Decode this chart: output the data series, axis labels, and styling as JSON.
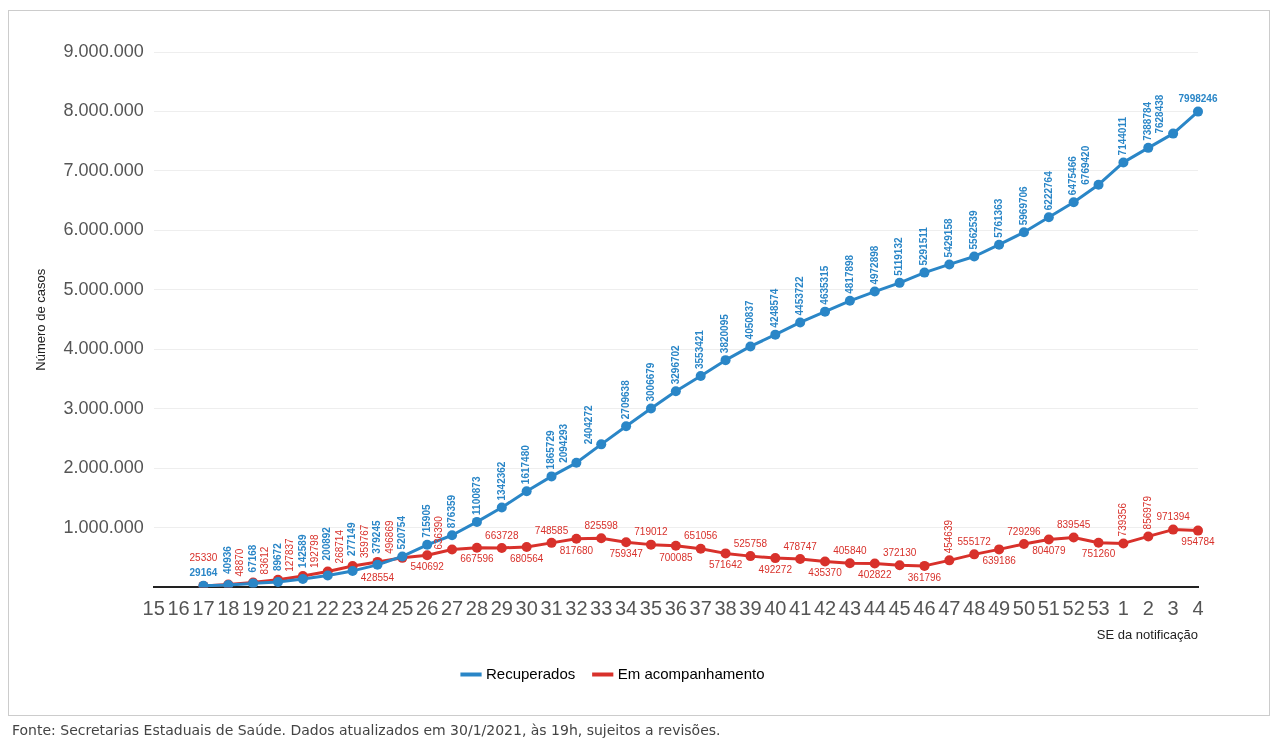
{
  "chart_data": {
    "type": "line",
    "ylabel": "Número de casos",
    "xlabel": "SE da notificação",
    "categories": [
      "15",
      "16",
      "17",
      "18",
      "19",
      "20",
      "21",
      "22",
      "23",
      "24",
      "25",
      "26",
      "27",
      "28",
      "29",
      "30",
      "31",
      "32",
      "33",
      "34",
      "35",
      "36",
      "37",
      "38",
      "39",
      "40",
      "41",
      "42",
      "43",
      "44",
      "45",
      "46",
      "47",
      "48",
      "49",
      "50",
      "51",
      "52",
      "53",
      "1",
      "2",
      "3",
      "4"
    ],
    "series": [
      {
        "name": "Recuperados",
        "color": "#2a86c7",
        "values": [
          null,
          null,
          29164,
          40936,
          67168,
          89672,
          142589,
          200892,
          277149,
          379245,
          520754,
          715905,
          876359,
          1100873,
          1342362,
          1617480,
          1865729,
          2094293,
          2404272,
          2709638,
          3006679,
          3296702,
          3553421,
          3820095,
          4050837,
          4248574,
          4453722,
          4635315,
          4817898,
          4972898,
          5119132,
          5291511,
          5429158,
          5562539,
          5761363,
          5969706,
          6222764,
          6475466,
          6769420,
          7144011,
          7388784,
          7628438,
          7998246
        ]
      },
      {
        "name": "Em acompanhamento",
        "color": "#d8312b",
        "values": [
          null,
          null,
          25330,
          48870,
          83612,
          127837,
          192798,
          268714,
          359767,
          428554,
          496869,
          540692,
          636390,
          667596,
          663728,
          680564,
          748585,
          817680,
          825598,
          759347,
          719012,
          700085,
          651056,
          571642,
          525758,
          492272,
          478747,
          435370,
          405840,
          402822,
          372130,
          361796,
          454639,
          555172,
          639186,
          729296,
          804079,
          839545,
          751260,
          739356,
          856979,
          971394,
          954784
        ]
      }
    ],
    "ylim": [
      0,
      9000000
    ],
    "yticks": [
      {
        "value": 0,
        "label": null
      },
      {
        "value": 1000000,
        "label": "1.000.000"
      },
      {
        "value": 2000000,
        "label": "2.000.000"
      },
      {
        "value": 3000000,
        "label": "3.000.000"
      },
      {
        "value": 4000000,
        "label": "4.000.000"
      },
      {
        "value": 5000000,
        "label": "5.000.000"
      },
      {
        "value": 6000000,
        "label": "6.000.000"
      },
      {
        "value": 7000000,
        "label": "7.000.000"
      },
      {
        "value": 8000000,
        "label": "8.000.000"
      },
      {
        "value": 9000000,
        "label": "9.000.000"
      }
    ],
    "grid": "y",
    "legend": "bottom",
    "marker": "circle",
    "line_style": "solid",
    "data_labels": true,
    "annotations": [
      "Fonte: Secretarias Estaduais de Saúde. Dados atualizados em 30/1/2021, às 19h, sujeitos a revisões."
    ]
  }
}
